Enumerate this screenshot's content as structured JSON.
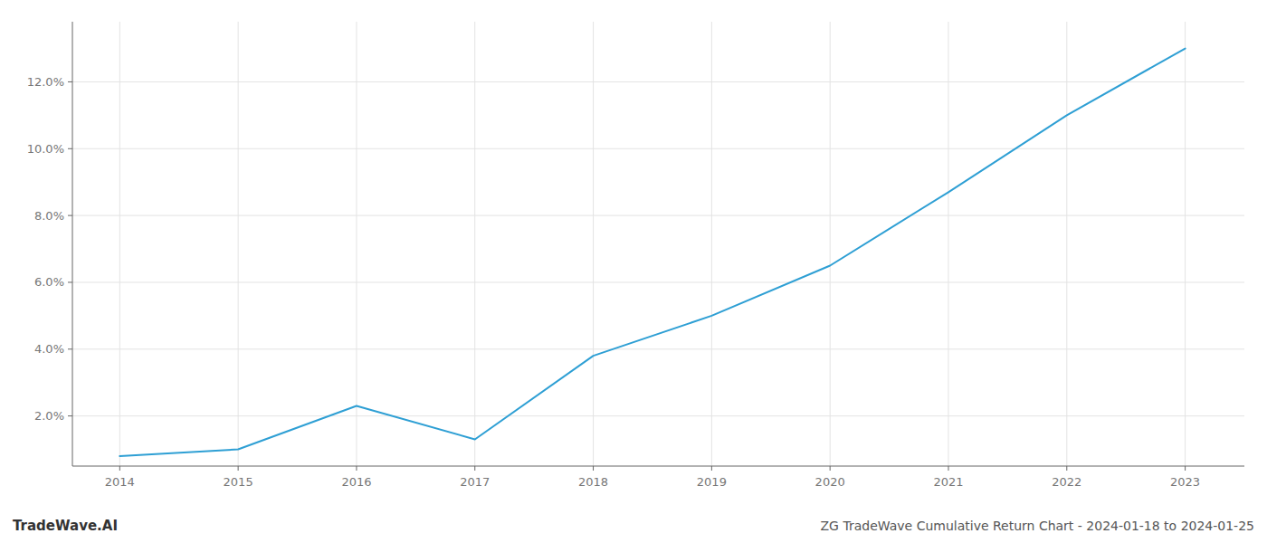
{
  "chart_data": {
    "type": "line",
    "title": "ZG TradeWave Cumulative Return Chart - 2024-01-18 to 2024-01-25",
    "annotations": [
      "TradeWave.AI"
    ],
    "x": [
      2014,
      2015,
      2016,
      2017,
      2018,
      2019,
      2020,
      2021,
      2022,
      2023
    ],
    "values": [
      0.008,
      0.01,
      0.023,
      0.013,
      0.038,
      0.05,
      0.065,
      0.087,
      0.11,
      0.13
    ],
    "color": "#2e9fd4",
    "xlim": [
      2013.6,
      2023.5
    ],
    "ylim": [
      0.005,
      0.138
    ],
    "xticks": [
      2014,
      2015,
      2016,
      2017,
      2018,
      2019,
      2020,
      2021,
      2022,
      2023
    ],
    "yticks": [
      {
        "value": 0.02,
        "label": "2.0%"
      },
      {
        "value": 0.04,
        "label": "4.0%"
      },
      {
        "value": 0.06,
        "label": "6.0%"
      },
      {
        "value": 0.08,
        "label": "8.0%"
      },
      {
        "value": 0.1,
        "label": "10.0%"
      },
      {
        "value": 0.12,
        "label": "12.0%"
      }
    ],
    "grid": true
  }
}
